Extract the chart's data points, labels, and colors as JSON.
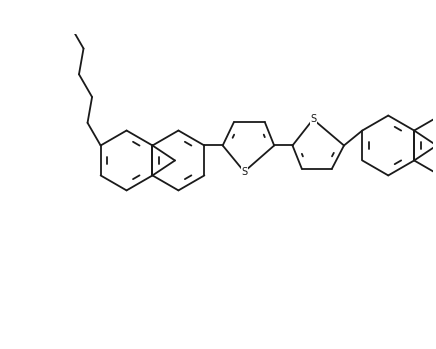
{
  "background_color": "#ffffff",
  "line_color": "#1a1a1a",
  "line_width": 1.3,
  "figsize": [
    4.36,
    3.49
  ],
  "dpi": 100
}
